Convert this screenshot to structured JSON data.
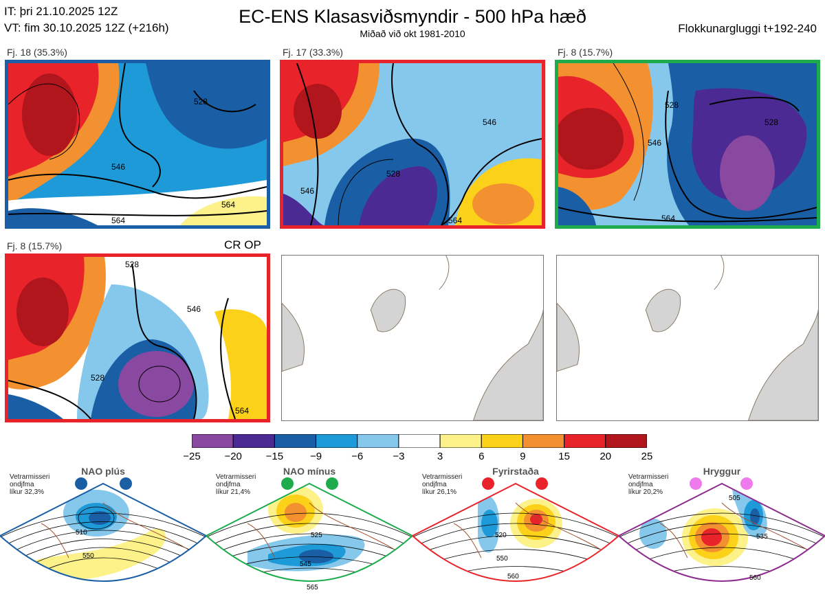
{
  "header": {
    "it_line": "IT: þri 21.10.2025 12Z",
    "vt_line": "VT: fim 30.10.2025 12Z  (+216h)",
    "title": "EC-ENS Klasasviðsmyndir - 500 hPa hæð",
    "subtitle": "Miðað við okt 1981-2010",
    "window": "Flokkunargluggi t+192-240"
  },
  "clusters": [
    {
      "label": "Fj. 18 (35.3%)",
      "border_color": "#1a5fa6",
      "contours": [
        "546",
        "564",
        "528",
        "564"
      ]
    },
    {
      "label": "Fj. 17 (33.3%)",
      "border_color": "#e8242a",
      "contours": [
        "546",
        "528",
        "546",
        "564"
      ]
    },
    {
      "label": "Fj. 8 (15.7%)",
      "border_color": "#1eab4c",
      "contours": [
        "528",
        "546",
        "564",
        "528"
      ]
    },
    {
      "label": "Fj. 8 (15.7%)",
      "border_color": "#e8242a",
      "contours": [
        "528",
        "546",
        "528",
        "564"
      ]
    }
  ],
  "op_label": "CR OP",
  "colorbar": {
    "ticks": [
      "−25",
      "−20",
      "−15",
      "−9",
      "−6",
      "−3",
      "3",
      "6",
      "9",
      "15",
      "20",
      "25"
    ],
    "colors": [
      "#8a49a0",
      "#4b2a93",
      "#1a5fa6",
      "#1d9ad7",
      "#86c8ec",
      "#ffffff",
      "#fdf18a",
      "#fbd219",
      "#f39130",
      "#e8242a",
      "#b0161b"
    ]
  },
  "regimes": [
    {
      "name": "NAO plús",
      "note": "Vetrarmisseri\nondjfma\nlíkur 32,3%",
      "border_color": "#1a5fa6",
      "dot_color": "#1a5fa6",
      "contour_labels": [
        "510",
        "550"
      ]
    },
    {
      "name": "NAO mínus",
      "note": "Vetrarmisseri\nondjfma\nlíkur 21,4%",
      "border_color": "#1eab4c",
      "dot_color": "#1eab4c",
      "contour_labels": [
        "525",
        "545",
        "565"
      ]
    },
    {
      "name": "Fyrirstaða",
      "note": "Vetrarmisseri\nondjfma\nlíkur 26,1%",
      "border_color": "#e8242a",
      "dot_color": "#e8242a",
      "contour_labels": [
        "520",
        "550",
        "560"
      ]
    },
    {
      "name": "Hryggur",
      "note": "Vetrarmisseri\nondjfma\nlíkur 20,2%",
      "border_color": "#8e2c8e",
      "dot_color": "#ee7aee",
      "contour_labels": [
        "505",
        "535",
        "560"
      ]
    }
  ]
}
